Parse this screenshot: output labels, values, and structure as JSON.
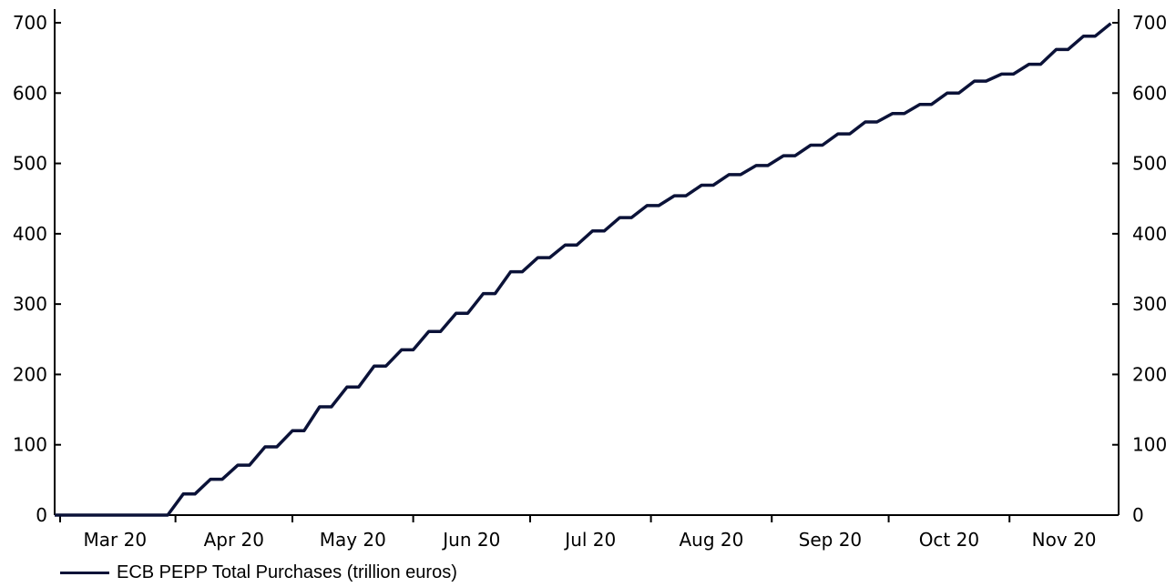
{
  "chart_data": {
    "type": "line",
    "xlabel": "",
    "ylabel": "",
    "ylim": [
      0,
      720
    ],
    "yticks": [
      0,
      100,
      200,
      300,
      400,
      500,
      600,
      700
    ],
    "y_axes": "left-and-right",
    "grid": false,
    "legend_position": "bottom-left",
    "x_tick_labels": [
      "Mar 20",
      "Apr 20",
      "May 20",
      "Jun 20",
      "Jul 20",
      "Aug 20",
      "Sep 20",
      "Oct 20",
      "Nov 20"
    ],
    "series": [
      {
        "name": "ECB PEPP Total Purchases (trillion euros)",
        "color": "#0b1238",
        "step": true,
        "x": [
          "2020-03-01",
          "2020-03-27",
          "2020-03-30",
          "2020-04-03",
          "2020-04-06",
          "2020-04-10",
          "2020-04-13",
          "2020-04-17",
          "2020-04-20",
          "2020-04-24",
          "2020-04-27",
          "2020-05-01",
          "2020-05-04",
          "2020-05-08",
          "2020-05-11",
          "2020-05-15",
          "2020-05-18",
          "2020-05-22",
          "2020-05-25",
          "2020-05-29",
          "2020-06-01",
          "2020-06-05",
          "2020-06-08",
          "2020-06-12",
          "2020-06-15",
          "2020-06-19",
          "2020-06-22",
          "2020-06-26",
          "2020-06-29",
          "2020-07-03",
          "2020-07-06",
          "2020-07-10",
          "2020-07-13",
          "2020-07-17",
          "2020-07-20",
          "2020-07-24",
          "2020-07-27",
          "2020-07-31",
          "2020-08-03",
          "2020-08-07",
          "2020-08-10",
          "2020-08-14",
          "2020-08-17",
          "2020-08-21",
          "2020-08-24",
          "2020-08-28",
          "2020-08-31",
          "2020-09-04",
          "2020-09-07",
          "2020-09-11",
          "2020-09-14",
          "2020-09-18",
          "2020-09-21",
          "2020-09-25",
          "2020-09-28",
          "2020-10-02",
          "2020-10-05",
          "2020-10-09",
          "2020-10-12",
          "2020-10-16",
          "2020-10-19",
          "2020-10-23",
          "2020-10-26",
          "2020-10-30",
          "2020-11-02",
          "2020-11-06",
          "2020-11-09",
          "2020-11-13",
          "2020-11-16",
          "2020-11-20",
          "2020-11-23",
          "2020-11-27"
        ],
        "values": [
          0,
          0,
          0,
          30,
          30,
          51,
          51,
          71,
          71,
          97,
          97,
          120,
          120,
          154,
          154,
          182,
          182,
          212,
          212,
          235,
          235,
          261,
          261,
          287,
          287,
          315,
          315,
          346,
          346,
          366,
          366,
          384,
          384,
          404,
          404,
          423,
          423,
          440,
          440,
          454,
          454,
          469,
          469,
          484,
          484,
          497,
          497,
          511,
          511,
          526,
          526,
          542,
          542,
          559,
          559,
          571,
          571,
          584,
          584,
          600,
          600,
          617,
          617,
          627,
          627,
          641,
          641,
          662,
          662,
          681,
          681,
          699
        ]
      }
    ]
  }
}
